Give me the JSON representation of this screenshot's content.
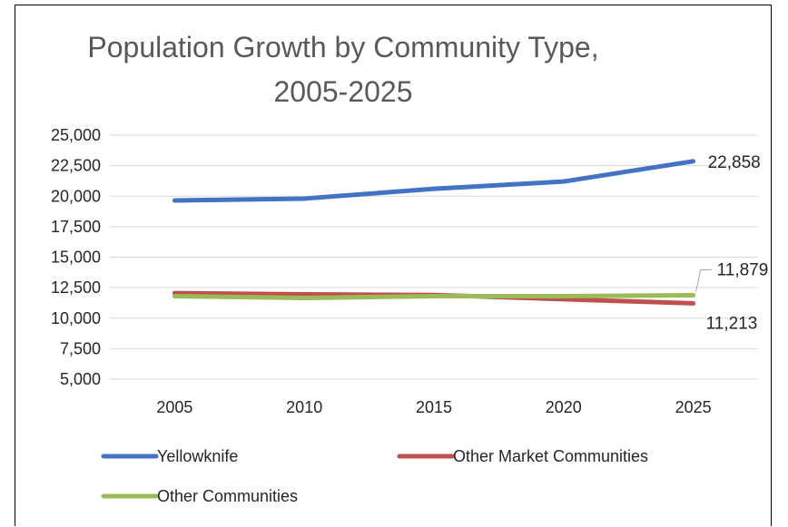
{
  "chart_data": {
    "type": "line",
    "title_lines": [
      "Population Growth by Community Type,",
      "2005-2025"
    ],
    "xlabel": "",
    "ylabel": "",
    "categories": [
      "2005",
      "2010",
      "2015",
      "2020",
      "2025"
    ],
    "ylim": [
      5000,
      25000
    ],
    "yticks": [
      {
        "value": 5000,
        "label": "5,000"
      },
      {
        "value": 7500,
        "label": "7,500"
      },
      {
        "value": 10000,
        "label": "10,000"
      },
      {
        "value": 12500,
        "label": "12,500"
      },
      {
        "value": 15000,
        "label": "15,000"
      },
      {
        "value": 17500,
        "label": "17,500"
      },
      {
        "value": 20000,
        "label": "20,000"
      },
      {
        "value": 22500,
        "label": "22,500"
      },
      {
        "value": 25000,
        "label": "25,000"
      }
    ],
    "grid": true,
    "legend_position": "bottom",
    "series": [
      {
        "name": "Yellowknife",
        "color": "#4472C4",
        "values": [
          19650,
          19800,
          20600,
          21200,
          22858
        ],
        "end_label": "22,858"
      },
      {
        "name": "Other Market Communities",
        "color": "#C0504D",
        "values": [
          12050,
          11950,
          11900,
          11550,
          11213
        ],
        "end_label": "11,213"
      },
      {
        "name": "Other Communities",
        "color": "#9BBB59",
        "values": [
          11800,
          11650,
          11800,
          11800,
          11879
        ],
        "end_label": "11,879"
      }
    ]
  }
}
